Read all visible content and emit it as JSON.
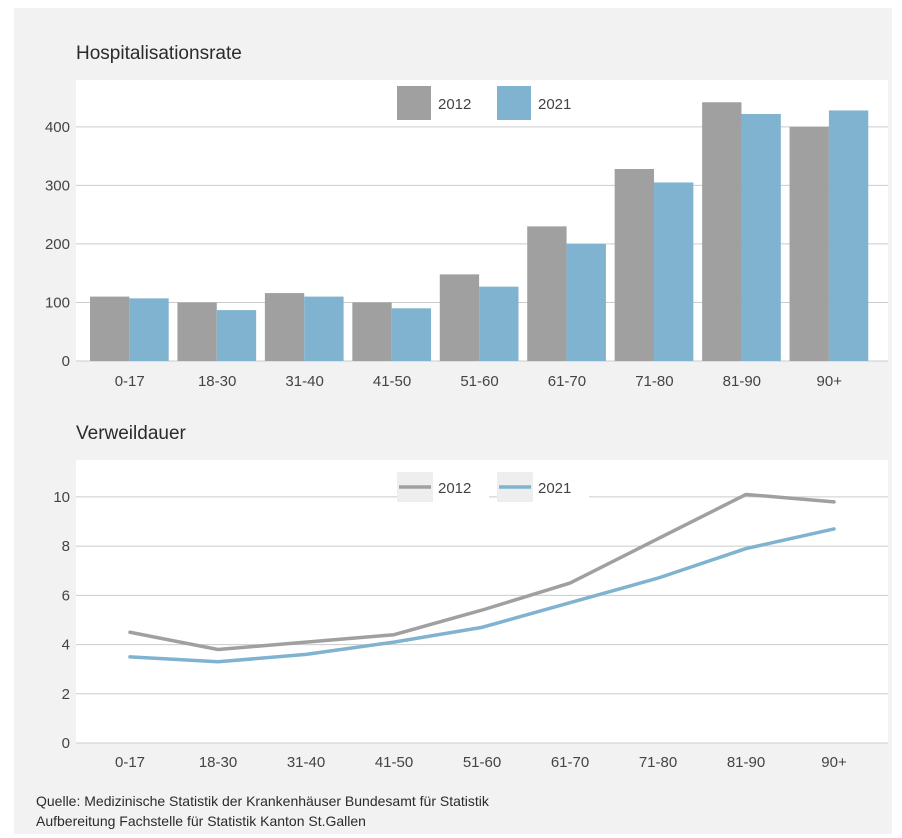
{
  "source": {
    "line1": "Quelle: Medizinische Statistik der Krankenhäuser Bundesamt für Statistik",
    "line2": "Aufbereitung Fachstelle für Statistik Kanton St.Gallen"
  },
  "colors": {
    "series_2012": "#a0a0a0",
    "series_2021": "#7fb3d0",
    "grid": "#cccccc",
    "plot_bg": "#ffffff"
  },
  "chart_data": [
    {
      "type": "bar",
      "title": "Hospitalisationsrate",
      "categories": [
        "0-17",
        "18-30",
        "31-40",
        "41-50",
        "51-60",
        "61-70",
        "71-80",
        "81-90",
        "90+"
      ],
      "series": [
        {
          "name": "2012",
          "values": [
            110,
            100,
            116,
            100,
            148,
            230,
            328,
            442,
            400
          ]
        },
        {
          "name": "2021",
          "values": [
            107,
            87,
            110,
            90,
            127,
            200,
            305,
            422,
            428
          ]
        }
      ],
      "ylim": [
        0,
        480
      ],
      "yticks": [
        0,
        100,
        200,
        300,
        400
      ],
      "grid": true,
      "legend": "top-center"
    },
    {
      "type": "line",
      "title": "Verweildauer",
      "categories": [
        "0-17",
        "18-30",
        "31-40",
        "41-50",
        "51-60",
        "61-70",
        "71-80",
        "81-90",
        "90+"
      ],
      "series": [
        {
          "name": "2012",
          "values": [
            4.5,
            3.8,
            4.1,
            4.4,
            5.4,
            6.5,
            8.3,
            10.1,
            9.8
          ]
        },
        {
          "name": "2021",
          "values": [
            3.5,
            3.3,
            3.6,
            4.1,
            4.7,
            5.7,
            6.7,
            7.9,
            8.7
          ]
        }
      ],
      "ylim": [
        0,
        11.5
      ],
      "yticks": [
        0,
        2,
        4,
        6,
        8,
        10
      ],
      "grid": true,
      "legend": "top-center"
    }
  ]
}
